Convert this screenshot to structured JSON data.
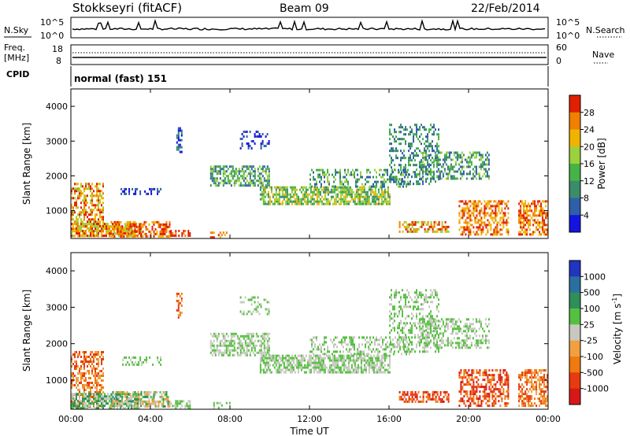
{
  "header": {
    "station": "Stokkseyri (fitACF)",
    "beam": "Beam 09",
    "date": "22/Feb/2014"
  },
  "panels": {
    "nsky_label": "N.Sky",
    "nsearch_label": "N.Search",
    "freq_label": "Freq.",
    "freq_unit": "[MHz]",
    "nave_label": "Nave",
    "cpid_label": "CPID",
    "cpid_value": "normal (fast) 151",
    "noise_ticks_left": [
      "10^5",
      "10^0"
    ],
    "noise_ticks_right": [
      "10^5",
      "10^0"
    ],
    "freq_ticks": [
      "18",
      "8"
    ],
    "nave_ticks": [
      "60",
      "0"
    ]
  },
  "chart_data": [
    {
      "type": "heatmap",
      "name": "power",
      "ylabel": "Slant Range [km]",
      "ylim": [
        200,
        4500
      ],
      "yticks": [
        "1000",
        "2000",
        "3000",
        "4000"
      ],
      "colorbar": {
        "label": "Power [dB]",
        "ticks": [
          "4",
          "8",
          "12",
          "16",
          "20",
          "24",
          "28"
        ],
        "colors": [
          "#1414e0",
          "#2f5fa8",
          "#3a8c6a",
          "#46b346",
          "#9bd13c",
          "#f0b400",
          "#f08000",
          "#e02000"
        ]
      }
    },
    {
      "type": "heatmap",
      "name": "velocity",
      "ylabel": "Slant Range [km]",
      "xlabel": "Time UT",
      "ylim": [
        200,
        4500
      ],
      "yticks": [
        "1000",
        "2000",
        "3000",
        "4000"
      ],
      "xticks": [
        "00:00",
        "04:00",
        "08:00",
        "12:00",
        "16:00",
        "20:00",
        "00:00"
      ],
      "colorbar": {
        "label": "Velocity [m s",
        "label_sup": "-1",
        "label_end": "]",
        "ticks": [
          "1000",
          "500",
          "100",
          "25",
          "-25",
          "-100",
          "-500",
          "-1000"
        ],
        "colors": [
          "#2035c0",
          "#2a6fa0",
          "#2f8f5a",
          "#55c040",
          "#c8c8c0",
          "#f0a040",
          "#f07a10",
          "#e83a10",
          "#d81818"
        ]
      }
    }
  ]
}
